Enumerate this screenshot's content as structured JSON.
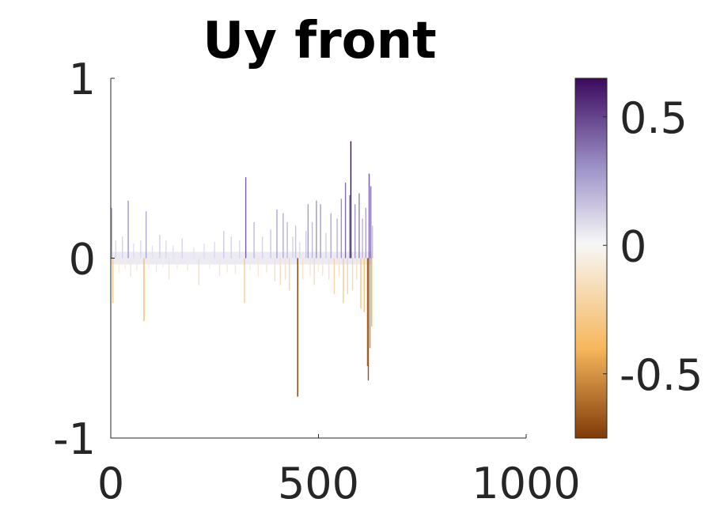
{
  "chart_data": {
    "type": "line",
    "title": "Uy front",
    "xlabel": "",
    "ylabel": "",
    "xlim": [
      0,
      1000
    ],
    "ylim": [
      -1,
      1
    ],
    "x_ticks": [
      {
        "value": 0,
        "label": "0"
      },
      {
        "value": 500,
        "label": "500"
      },
      {
        "value": 1000,
        "label": "1000"
      }
    ],
    "y_ticks": [
      {
        "value": -1,
        "label": "-1"
      },
      {
        "value": 0,
        "label": "0"
      },
      {
        "value": 1,
        "label": "1"
      }
    ],
    "grid": false,
    "spikes": [
      {
        "x": 2,
        "y": 0.28
      },
      {
        "x": 5,
        "y": -0.25
      },
      {
        "x": 12,
        "y": 0.1
      },
      {
        "x": 20,
        "y": -0.08
      },
      {
        "x": 28,
        "y": 0.12
      },
      {
        "x": 35,
        "y": -0.06
      },
      {
        "x": 42,
        "y": 0.32
      },
      {
        "x": 48,
        "y": -0.1
      },
      {
        "x": 55,
        "y": 0.08
      },
      {
        "x": 63,
        "y": -0.07
      },
      {
        "x": 72,
        "y": 0.1
      },
      {
        "x": 80,
        "y": -0.35
      },
      {
        "x": 85,
        "y": 0.26
      },
      {
        "x": 92,
        "y": -0.06
      },
      {
        "x": 100,
        "y": 0.07
      },
      {
        "x": 110,
        "y": -0.08
      },
      {
        "x": 118,
        "y": 0.13
      },
      {
        "x": 125,
        "y": -0.05
      },
      {
        "x": 133,
        "y": 0.1
      },
      {
        "x": 140,
        "y": -0.12
      },
      {
        "x": 150,
        "y": 0.07
      },
      {
        "x": 160,
        "y": -0.06
      },
      {
        "x": 172,
        "y": 0.11
      },
      {
        "x": 185,
        "y": -0.07
      },
      {
        "x": 200,
        "y": 0.06
      },
      {
        "x": 212,
        "y": -0.15
      },
      {
        "x": 225,
        "y": 0.08
      },
      {
        "x": 238,
        "y": -0.06
      },
      {
        "x": 250,
        "y": 0.09
      },
      {
        "x": 262,
        "y": -0.1
      },
      {
        "x": 272,
        "y": 0.15
      },
      {
        "x": 280,
        "y": -0.08
      },
      {
        "x": 290,
        "y": 0.12
      },
      {
        "x": 300,
        "y": -0.09
      },
      {
        "x": 310,
        "y": 0.1
      },
      {
        "x": 322,
        "y": -0.25
      },
      {
        "x": 325,
        "y": 0.45
      },
      {
        "x": 335,
        "y": -0.07
      },
      {
        "x": 345,
        "y": 0.2
      },
      {
        "x": 355,
        "y": -0.1
      },
      {
        "x": 365,
        "y": 0.12
      },
      {
        "x": 375,
        "y": -0.08
      },
      {
        "x": 385,
        "y": 0.16
      },
      {
        "x": 395,
        "y": -0.13
      },
      {
        "x": 400,
        "y": 0.27
      },
      {
        "x": 408,
        "y": -0.15
      },
      {
        "x": 415,
        "y": 0.25
      },
      {
        "x": 420,
        "y": -0.12
      },
      {
        "x": 425,
        "y": 0.2
      },
      {
        "x": 430,
        "y": -0.18
      },
      {
        "x": 438,
        "y": 0.12
      },
      {
        "x": 445,
        "y": 0.18
      },
      {
        "x": 450,
        "y": -0.77
      },
      {
        "x": 455,
        "y": 0.09
      },
      {
        "x": 462,
        "y": -0.12
      },
      {
        "x": 470,
        "y": 0.15
      },
      {
        "x": 475,
        "y": 0.3
      },
      {
        "x": 480,
        "y": -0.1
      },
      {
        "x": 485,
        "y": 0.2
      },
      {
        "x": 490,
        "y": -0.15
      },
      {
        "x": 495,
        "y": 0.32
      },
      {
        "x": 500,
        "y": -0.08
      },
      {
        "x": 505,
        "y": 0.3
      },
      {
        "x": 510,
        "y": -0.1
      },
      {
        "x": 518,
        "y": 0.14
      },
      {
        "x": 525,
        "y": -0.12
      },
      {
        "x": 530,
        "y": 0.25
      },
      {
        "x": 538,
        "y": -0.2
      },
      {
        "x": 545,
        "y": 0.22
      },
      {
        "x": 550,
        "y": -0.1
      },
      {
        "x": 555,
        "y": 0.33
      },
      {
        "x": 560,
        "y": -0.25
      },
      {
        "x": 565,
        "y": 0.42
      },
      {
        "x": 570,
        "y": -0.2
      },
      {
        "x": 575,
        "y": 0.35
      },
      {
        "x": 578,
        "y": 0.65
      },
      {
        "x": 582,
        "y": -0.18
      },
      {
        "x": 588,
        "y": 0.3
      },
      {
        "x": 592,
        "y": -0.12
      },
      {
        "x": 598,
        "y": 0.36
      },
      {
        "x": 602,
        "y": -0.28
      },
      {
        "x": 606,
        "y": 0.22
      },
      {
        "x": 610,
        "y": -0.3
      },
      {
        "x": 614,
        "y": 0.28
      },
      {
        "x": 618,
        "y": -0.6
      },
      {
        "x": 620,
        "y": -0.68
      },
      {
        "x": 622,
        "y": 0.47
      },
      {
        "x": 624,
        "y": -0.5
      },
      {
        "x": 626,
        "y": 0.4
      },
      {
        "x": 628,
        "y": -0.38
      },
      {
        "x": 630,
        "y": 0.18
      }
    ],
    "data_end_x": 630,
    "colorbar": {
      "clim": [
        -0.75,
        0.65
      ],
      "ticks": [
        {
          "value": 0.5,
          "label": "0.5"
        },
        {
          "value": 0,
          "label": "0"
        },
        {
          "value": -0.5,
          "label": "-0.5"
        }
      ],
      "colors": {
        "top": "#3b0a5e",
        "upper_mid": "#9e93c8",
        "center": "#f7f7f7",
        "lower_mid": "#f6b75c",
        "bottom": "#7f3b08"
      }
    }
  }
}
